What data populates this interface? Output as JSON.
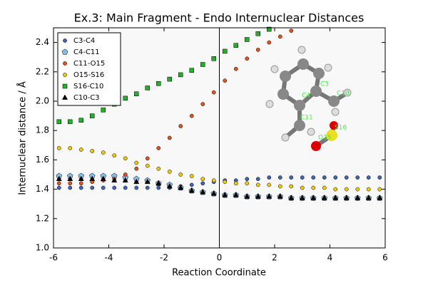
{
  "chart_data": {
    "type": "scatter",
    "title": "Ex.3: Main Fragment - Endo Internuclear Distances",
    "xlabel": "Reaction Coordinate",
    "ylabel": "Internuclear distance / Å",
    "x": [
      -5.8,
      -5.4,
      -5.0,
      -4.6,
      -4.2,
      -3.8,
      -3.4,
      -3.0,
      -2.6,
      -2.2,
      -1.8,
      -1.4,
      -1.0,
      -0.6,
      -0.2,
      0.2,
      0.6,
      1.0,
      1.4,
      1.8,
      2.2,
      2.6,
      3.0,
      3.4,
      3.8,
      4.2,
      4.6,
      5.0,
      5.4,
      5.8
    ],
    "series": [
      {
        "name": "C3-C4",
        "color": "#3f63b5",
        "marker": "circle",
        "values": [
          1.41,
          1.41,
          1.41,
          1.41,
          1.41,
          1.41,
          1.41,
          1.41,
          1.41,
          1.41,
          1.41,
          1.42,
          1.43,
          1.44,
          1.45,
          1.46,
          1.46,
          1.47,
          1.47,
          1.48,
          1.48,
          1.48,
          1.48,
          1.48,
          1.48,
          1.48,
          1.48,
          1.48,
          1.48,
          1.48
        ]
      },
      {
        "name": "C4-C11",
        "color": "#86bde6",
        "marker": "pentagon",
        "values": [
          1.49,
          1.49,
          1.49,
          1.49,
          1.49,
          1.49,
          1.48,
          1.47,
          1.46,
          1.44,
          1.43,
          1.41,
          1.39,
          1.38,
          1.37,
          1.36,
          1.36,
          1.35,
          1.35,
          1.35,
          1.35,
          1.34,
          1.34,
          1.34,
          1.34,
          1.34,
          1.34,
          1.34,
          1.34,
          1.34
        ]
      },
      {
        "name": "C11-O15",
        "color": "#e2521c",
        "marker": "circle",
        "values": [
          1.44,
          1.44,
          1.44,
          1.45,
          1.46,
          1.47,
          1.5,
          1.54,
          1.61,
          1.68,
          1.75,
          1.83,
          1.9,
          1.98,
          2.06,
          2.14,
          2.22,
          2.29,
          2.35,
          2.4,
          2.44,
          2.48,
          null,
          null,
          null,
          null,
          null,
          null,
          null,
          null
        ]
      },
      {
        "name": "O15-S16",
        "color": "#f2c80a",
        "marker": "circle",
        "values": [
          1.68,
          1.68,
          1.67,
          1.66,
          1.65,
          1.63,
          1.61,
          1.58,
          1.56,
          1.54,
          1.52,
          1.5,
          1.49,
          1.47,
          1.46,
          1.45,
          1.44,
          1.44,
          1.43,
          1.43,
          1.42,
          1.42,
          1.41,
          1.41,
          1.41,
          1.4,
          1.4,
          1.4,
          1.4,
          1.4
        ]
      },
      {
        "name": "S16-C10",
        "color": "#22b02a",
        "marker": "square",
        "values": [
          1.86,
          1.86,
          1.87,
          1.9,
          1.94,
          1.98,
          2.02,
          2.05,
          2.09,
          2.12,
          2.15,
          2.18,
          2.21,
          2.25,
          2.29,
          2.34,
          2.38,
          2.42,
          2.46,
          2.49,
          null,
          null,
          null,
          null,
          null,
          null,
          null,
          null,
          null,
          null
        ]
      },
      {
        "name": "C10-C3",
        "color": "#000000",
        "marker": "triangle",
        "values": [
          1.47,
          1.47,
          1.47,
          1.47,
          1.47,
          1.46,
          1.46,
          1.45,
          1.45,
          1.44,
          1.42,
          1.41,
          1.39,
          1.38,
          1.37,
          1.36,
          1.36,
          1.35,
          1.35,
          1.35,
          1.35,
          1.34,
          1.34,
          1.34,
          1.34,
          1.34,
          1.34,
          1.34,
          1.34,
          1.34
        ]
      }
    ],
    "xlim": [
      -6,
      6
    ],
    "xticks": [
      -6,
      -4,
      -2,
      0,
      2,
      4,
      6
    ],
    "ylim": [
      1.0,
      2.5
    ],
    "yticks": [
      {
        "value": 1.0,
        "label": "1.0"
      },
      1.2,
      1.4,
      1.6,
      1.8,
      {
        "value": 2.0,
        "label": "2.0"
      },
      2.2,
      2.4
    ],
    "vlines": [
      0
    ],
    "legend": "upper left",
    "annotations": [
      "C4",
      "C3",
      "C10",
      "C11",
      "S16",
      "O15"
    ]
  }
}
